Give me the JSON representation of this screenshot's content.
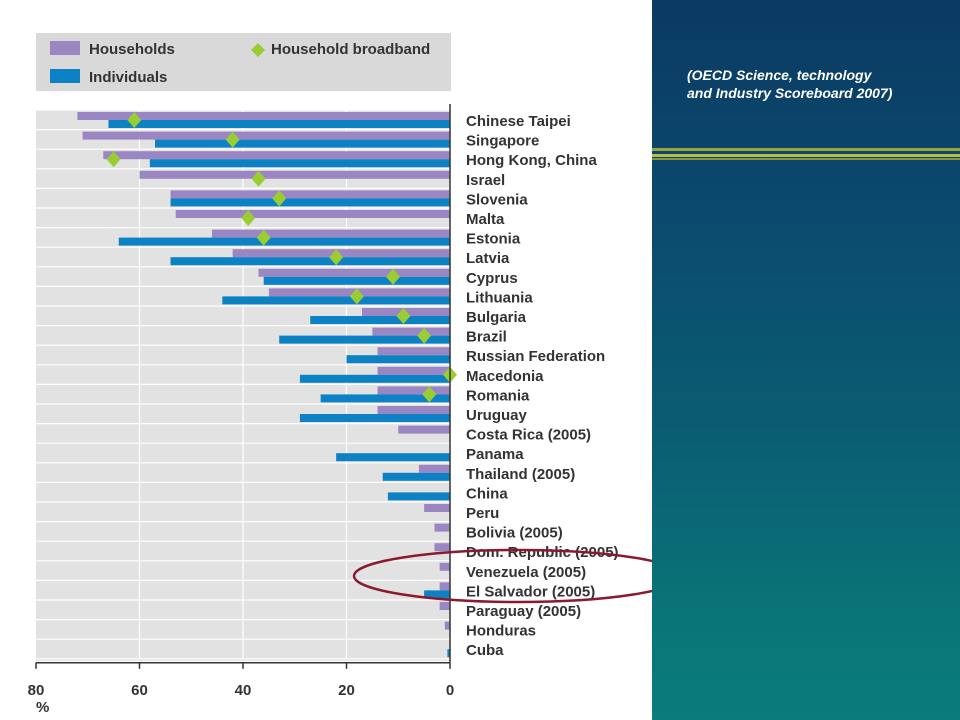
{
  "caption": {
    "line1": "(OECD Science, technology",
    "line2": "and Industry Scoreboard 2007)"
  },
  "colors": {
    "households": "#9b86c4",
    "individuals": "#0c82c4",
    "broadband": "#9acd32",
    "highlight": "#8b1a2e"
  },
  "chart_data": {
    "type": "bar",
    "orientation": "horizontal",
    "direction": "right-to-left",
    "xlabel": "%",
    "xlim": [
      0,
      80
    ],
    "xticks": [
      "80",
      "60",
      "40",
      "20",
      "0"
    ],
    "legend": {
      "position": "top",
      "households": "Households",
      "individuals": "Individuals",
      "broadband": "Household broadband"
    },
    "categories": [
      "Chinese Taipei",
      "Singapore",
      "Hong Kong, China",
      "Israel",
      "Slovenia",
      "Malta",
      "Estonia",
      "Latvia",
      "Cyprus",
      "Lithuania",
      "Bulgaria",
      "Brazil",
      "Russian Federation",
      "Macedonia",
      "Romania",
      "Uruguay",
      "Costa Rica (2005)",
      "Panama",
      "Thailand (2005)",
      "China",
      "Peru",
      "Bolivia (2005)",
      "Dom. Republic (2005)",
      "Venezuela (2005)",
      "El Salvador (2005)",
      "Paraguay (2005)",
      "Honduras",
      "Cuba"
    ],
    "series": [
      {
        "name": "Households",
        "values": [
          72,
          71,
          67,
          60,
          54,
          53,
          46,
          42,
          37,
          35,
          17,
          15,
          14,
          14,
          14,
          14,
          10,
          0,
          6,
          0,
          5,
          3,
          3,
          2,
          2,
          2,
          1,
          0
        ]
      },
      {
        "name": "Individuals",
        "values": [
          66,
          57,
          58,
          null,
          54,
          null,
          64,
          54,
          36,
          44,
          27,
          33,
          20,
          29,
          25,
          29,
          null,
          22,
          13,
          12,
          null,
          null,
          null,
          null,
          5,
          null,
          null,
          0.5
        ]
      },
      {
        "name": "Household broadband",
        "values": [
          61,
          42,
          65,
          37,
          33,
          39,
          36,
          22,
          11,
          18,
          9,
          5,
          null,
          0,
          4,
          null,
          null,
          null,
          null,
          null,
          null,
          null,
          null,
          null,
          null,
          null,
          null,
          null
        ]
      }
    ],
    "highlighted": [
      "Dom. Republic (2005)",
      "Venezuela (2005)",
      "El Salvador (2005)"
    ]
  }
}
